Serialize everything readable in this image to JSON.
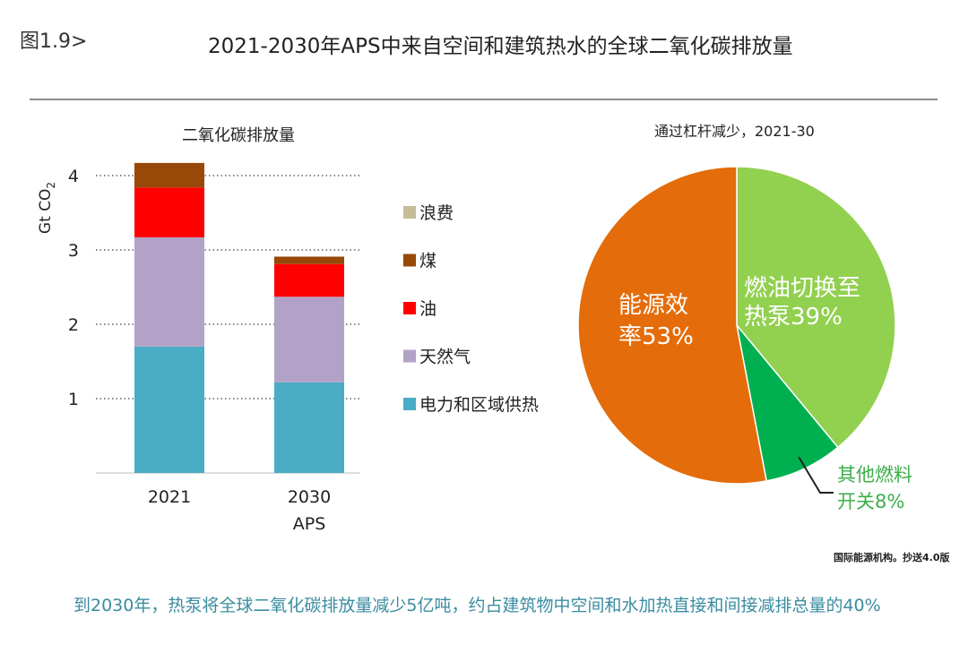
{
  "figure_label": "图1.9>",
  "title": "2021-2030年APS中来自空间和建筑热水的全球二氧化碳排放量",
  "source_note": "国际能源机构。抄送4.0版",
  "footer_note": "到2030年，热泵将全球二氧化碳排放量减少5亿吨，约占建筑物中空间和水加热直接和间接减排总量的40%",
  "chart_data": [
    {
      "type": "bar",
      "stacked": true,
      "title": "二氧化碳排放量",
      "ylabel": "Gt CO2",
      "ylabel_main": "Gt CO",
      "ylabel_sub": "2",
      "ylim": [
        0,
        4.2
      ],
      "yticks": [
        1,
        2,
        3,
        4
      ],
      "grid": "dotted",
      "legend_position": "right",
      "categories": [
        "2021",
        "2030"
      ],
      "category_sublabels": [
        "",
        "APS"
      ],
      "series": [
        {
          "name": "电力和区域供热",
          "color": "#4bacc6",
          "values": [
            1.7,
            1.22
          ]
        },
        {
          "name": "天然气",
          "color": "#b3a2c7",
          "values": [
            1.47,
            1.15
          ]
        },
        {
          "name": "油",
          "color": "#ff0000",
          "values": [
            0.67,
            0.44
          ]
        },
        {
          "name": "煤",
          "color": "#984807",
          "values": [
            0.33,
            0.1
          ]
        },
        {
          "name": "浪费",
          "color": "#c4bd97",
          "values": [
            0.0,
            0.0
          ]
        }
      ]
    },
    {
      "type": "pie",
      "title": "通过杠杆减少，2021-30",
      "slices": [
        {
          "label_line1": "燃油切换至",
          "label_line2": "热泵39%",
          "value": 39,
          "color": "#92d050"
        },
        {
          "label_line1": "其他燃料",
          "label_line2": "开关8%",
          "value": 8,
          "color": "#00b050"
        },
        {
          "label_line1": "能源效",
          "label_line2": "率53%",
          "value": 53,
          "color": "#e46c0a"
        }
      ]
    }
  ]
}
